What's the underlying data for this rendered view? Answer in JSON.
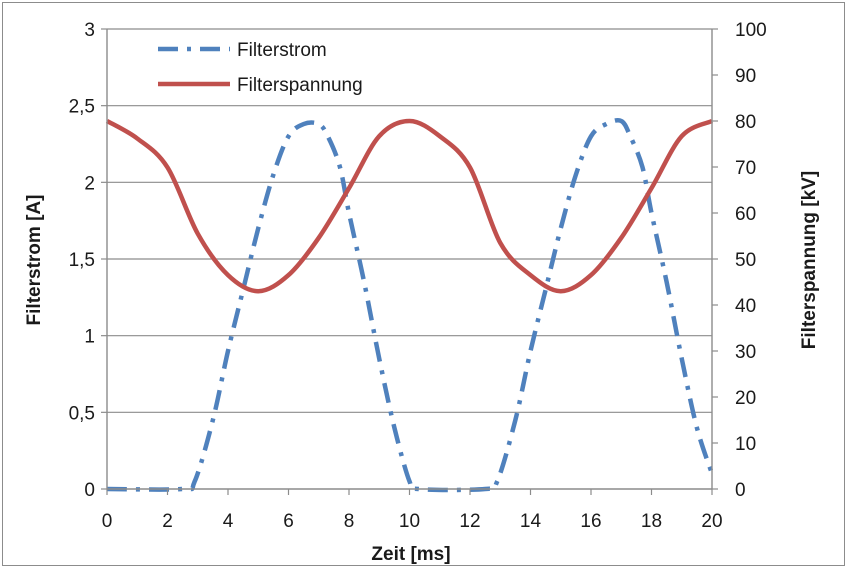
{
  "chart_data": {
    "type": "line",
    "xlabel": "Zeit [ms]",
    "ylabel": "Filterstrom [A]",
    "y2label": "Filterspannung [kV]",
    "xlim": [
      0,
      20
    ],
    "ylim": [
      0,
      3
    ],
    "y2lim": [
      0,
      100
    ],
    "x_ticks": [
      "0",
      "2",
      "4",
      "6",
      "8",
      "10",
      "12",
      "14",
      "16",
      "18",
      "20"
    ],
    "y_ticks": [
      "0",
      "0,5",
      "1",
      "1,5",
      "2",
      "2,5",
      "3"
    ],
    "y2_ticks": [
      "0",
      "10",
      "20",
      "30",
      "40",
      "50",
      "60",
      "70",
      "80",
      "90",
      "100"
    ],
    "grid": "horizontal",
    "legend_position": "top-left",
    "series": [
      {
        "name": "Filterstrom",
        "axis": "left",
        "color": "#4f81bd",
        "style": "dash-dot",
        "x": [
          0,
          2.5,
          2.9,
          3.5,
          4.0,
          4.5,
          5.0,
          5.5,
          6.0,
          6.5,
          7.0,
          7.3,
          7.7,
          8.0,
          8.5,
          9.0,
          9.5,
          10.0,
          10.3,
          12.5,
          12.9,
          13.5,
          14.0,
          14.5,
          15.0,
          15.5,
          16.0,
          16.5,
          17.0,
          17.3,
          17.7,
          18.0,
          18.5,
          19.0,
          19.5,
          20.0
        ],
        "y": [
          0,
          0,
          0.05,
          0.45,
          0.9,
          1.3,
          1.7,
          2.05,
          2.3,
          2.38,
          2.38,
          2.3,
          2.1,
          1.8,
          1.35,
          0.85,
          0.4,
          0.05,
          0,
          0,
          0.05,
          0.45,
          0.9,
          1.3,
          1.7,
          2.05,
          2.3,
          2.38,
          2.4,
          2.3,
          2.1,
          1.8,
          1.35,
          0.85,
          0.4,
          0.1
        ]
      },
      {
        "name": "Filterspannung",
        "axis": "right",
        "color": "#c0504d",
        "style": "solid",
        "x": [
          0,
          1,
          2,
          3,
          4,
          5,
          6,
          7,
          8,
          9,
          10,
          11,
          12,
          13,
          14,
          15,
          16,
          17,
          18,
          19,
          20
        ],
        "y": [
          80,
          76.2,
          69.9,
          55.5,
          46.5,
          43,
          46.5,
          54.6,
          65.4,
          76.7,
          80,
          76.7,
          69.9,
          53.5,
          46.5,
          43,
          46.5,
          54.6,
          65.4,
          76.7,
          80
        ]
      }
    ]
  }
}
